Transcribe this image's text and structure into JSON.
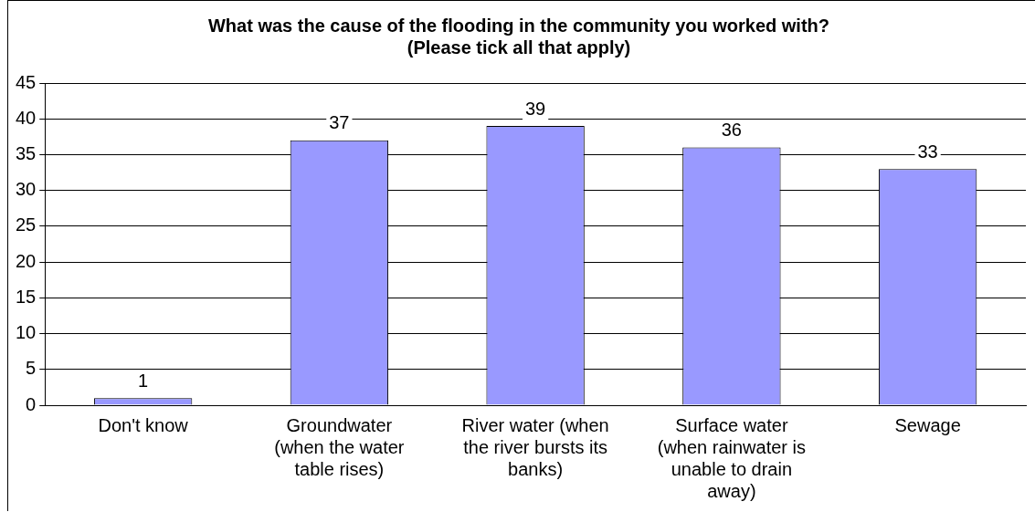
{
  "chart_data": {
    "type": "bar",
    "title": "What was the cause of the flooding in the community you worked with? (Please tick all that apply)",
    "categories": [
      "Don't know",
      "Groundwater (when the water table rises)",
      "River water (when the river bursts its banks)",
      "Surface water (when rainwater is unable to drain away)",
      "Sewage"
    ],
    "values": [
      1,
      37,
      39,
      36,
      33
    ],
    "color": "#9999ff",
    "ylim": [
      0,
      45
    ],
    "yticks": [
      0,
      5,
      10,
      15,
      20,
      25,
      30,
      35,
      40,
      45
    ],
    "grid": "y",
    "data_labels": true
  }
}
